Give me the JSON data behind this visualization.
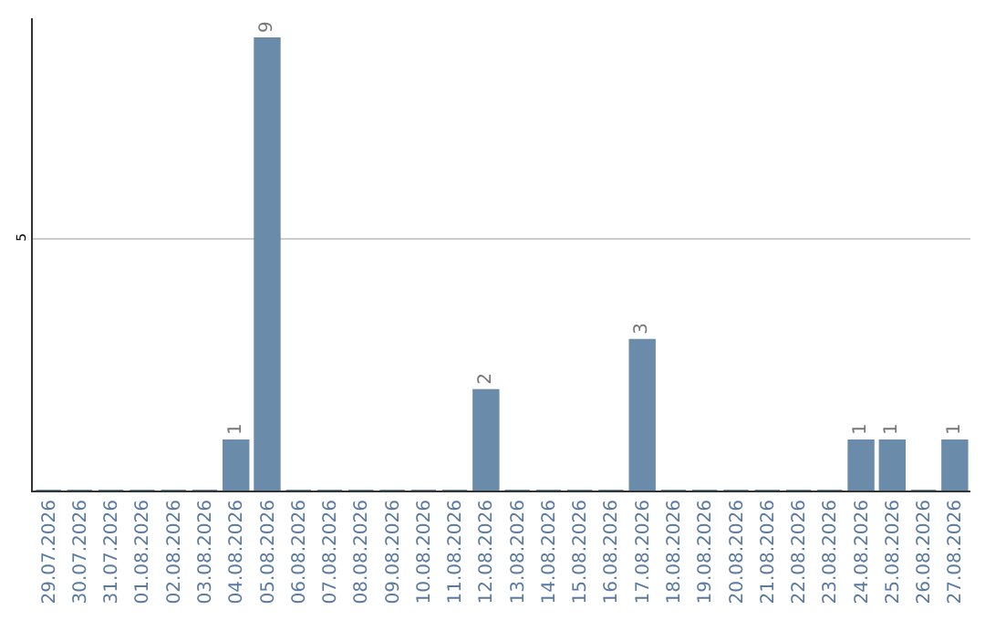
{
  "chart_data": {
    "type": "bar",
    "categories": [
      "29.07.2026",
      "30.07.2026",
      "31.07.2026",
      "01.08.2026",
      "02.08.2026",
      "03.08.2026",
      "04.08.2026",
      "05.08.2026",
      "06.08.2026",
      "07.08.2026",
      "08.08.2026",
      "09.08.2026",
      "10.08.2026",
      "11.08.2026",
      "12.08.2026",
      "13.08.2026",
      "14.08.2026",
      "15.08.2026",
      "16.08.2026",
      "17.08.2026",
      "18.08.2026",
      "19.08.2026",
      "20.08.2026",
      "21.08.2026",
      "22.08.2026",
      "23.08.2026",
      "24.08.2026",
      "25.08.2026",
      "26.08.2026",
      "27.08.2026"
    ],
    "values": [
      0,
      0,
      0,
      0,
      0,
      0,
      1,
      9,
      0,
      0,
      0,
      0,
      0,
      0,
      2,
      0,
      0,
      0,
      0,
      3,
      0,
      0,
      0,
      0,
      0,
      0,
      1,
      1,
      0,
      1
    ],
    "value_labels": [
      null,
      null,
      null,
      null,
      null,
      null,
      "1",
      "9",
      null,
      null,
      null,
      null,
      null,
      null,
      "2",
      null,
      null,
      null,
      null,
      "3",
      null,
      null,
      null,
      null,
      null,
      null,
      "1",
      "1",
      null,
      "1"
    ],
    "color": "#6a8caa",
    "ylim": [
      0,
      9.4
    ],
    "yticks": [
      5
    ],
    "grid": "y",
    "legend": false
  }
}
